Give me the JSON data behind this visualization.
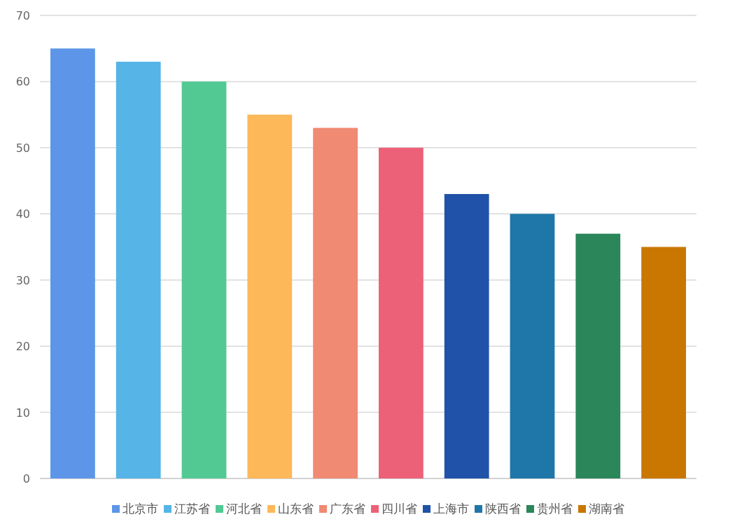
{
  "chart_data": {
    "type": "bar",
    "categories": [
      null,
      null,
      null,
      null,
      null,
      null,
      null,
      null,
      null,
      null
    ],
    "series": [
      {
        "name": "北京市",
        "color": "#5d96e8",
        "values": [
          65,
          null,
          null,
          null,
          null,
          null,
          null,
          null,
          null,
          null
        ]
      },
      {
        "name": "江苏省",
        "color": "#56b4e6",
        "values": [
          null,
          63,
          null,
          null,
          null,
          null,
          null,
          null,
          null,
          null
        ]
      },
      {
        "name": "河北省",
        "color": "#52c993",
        "values": [
          null,
          null,
          60,
          null,
          null,
          null,
          null,
          null,
          null,
          null
        ]
      },
      {
        "name": "山东省",
        "color": "#fdb85a",
        "values": [
          null,
          null,
          null,
          55,
          null,
          null,
          null,
          null,
          null,
          null
        ]
      },
      {
        "name": "广东省",
        "color": "#f08a73",
        "values": [
          null,
          null,
          null,
          null,
          53,
          null,
          null,
          null,
          null,
          null
        ]
      },
      {
        "name": "四川省",
        "color": "#ed6178",
        "values": [
          null,
          null,
          null,
          null,
          null,
          50,
          null,
          null,
          null,
          null
        ]
      },
      {
        "name": "上海市",
        "color": "#1f52a8",
        "values": [
          null,
          null,
          null,
          null,
          null,
          null,
          43,
          null,
          null,
          null
        ]
      },
      {
        "name": "陕西省",
        "color": "#1e77a8",
        "values": [
          null,
          null,
          null,
          null,
          null,
          null,
          null,
          40,
          null,
          null
        ]
      },
      {
        "name": "贵州省",
        "color": "#2b8659",
        "values": [
          null,
          null,
          null,
          null,
          null,
          null,
          null,
          null,
          37,
          null
        ]
      },
      {
        "name": "湖南省",
        "color": "#c97700",
        "values": [
          null,
          null,
          null,
          null,
          null,
          null,
          null,
          null,
          null,
          35
        ]
      }
    ],
    "ylim": [
      0,
      70
    ],
    "yticks": [
      0,
      10,
      20,
      30,
      40,
      50,
      60,
      70
    ],
    "grid": "y",
    "legend": "bottom"
  }
}
